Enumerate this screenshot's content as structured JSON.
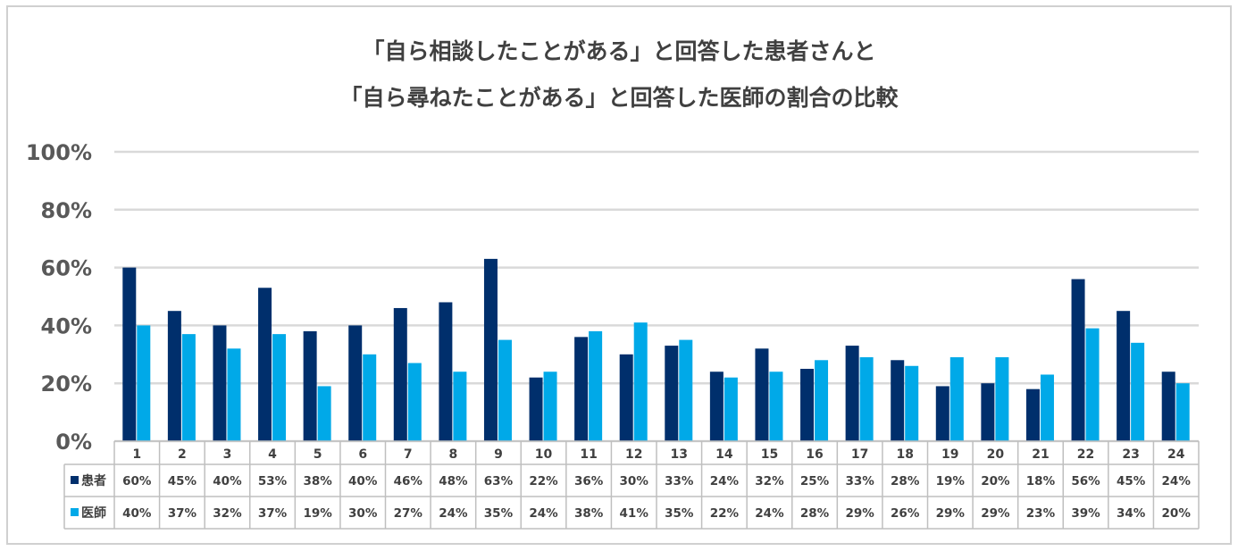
{
  "chart_data": {
    "type": "bar",
    "title_lines": [
      "「自ら相談したことがある」と回答した患者さんと",
      "「自ら尋ねたことがある」と回答した医師の割合の比較"
    ],
    "categories": [
      "1",
      "2",
      "3",
      "4",
      "5",
      "6",
      "7",
      "8",
      "9",
      "10",
      "11",
      "12",
      "13",
      "14",
      "15",
      "16",
      "17",
      "18",
      "19",
      "20",
      "21",
      "22",
      "23",
      "24"
    ],
    "series": [
      {
        "name": "患者",
        "color": "#002f6c",
        "values": [
          60,
          45,
          40,
          53,
          38,
          40,
          46,
          48,
          63,
          22,
          36,
          30,
          33,
          24,
          32,
          25,
          33,
          28,
          19,
          20,
          18,
          56,
          45,
          24
        ],
        "labels": [
          "60%",
          "45%",
          "40%",
          "53%",
          "38%",
          "40%",
          "46%",
          "48%",
          "63%",
          "22%",
          "36%",
          "30%",
          "33%",
          "24%",
          "32%",
          "25%",
          "33%",
          "28%",
          "19%",
          "20%",
          "18%",
          "56%",
          "45%",
          "24%"
        ]
      },
      {
        "name": "医師",
        "color": "#00a9e8",
        "values": [
          40,
          37,
          32,
          37,
          19,
          30,
          27,
          24,
          35,
          24,
          38,
          41,
          35,
          22,
          24,
          28,
          29,
          26,
          29,
          29,
          23,
          39,
          34,
          20
        ],
        "labels": [
          "40%",
          "37%",
          "32%",
          "37%",
          "19%",
          "30%",
          "27%",
          "24%",
          "35%",
          "24%",
          "38%",
          "41%",
          "35%",
          "22%",
          "24%",
          "28%",
          "29%",
          "26%",
          "29%",
          "29%",
          "23%",
          "39%",
          "34%",
          "20%"
        ]
      }
    ],
    "yticks": [
      "0%",
      "20%",
      "40%",
      "60%",
      "80%",
      "100%"
    ],
    "ylim": [
      0,
      100
    ],
    "grid": true,
    "legend": "data-table"
  }
}
